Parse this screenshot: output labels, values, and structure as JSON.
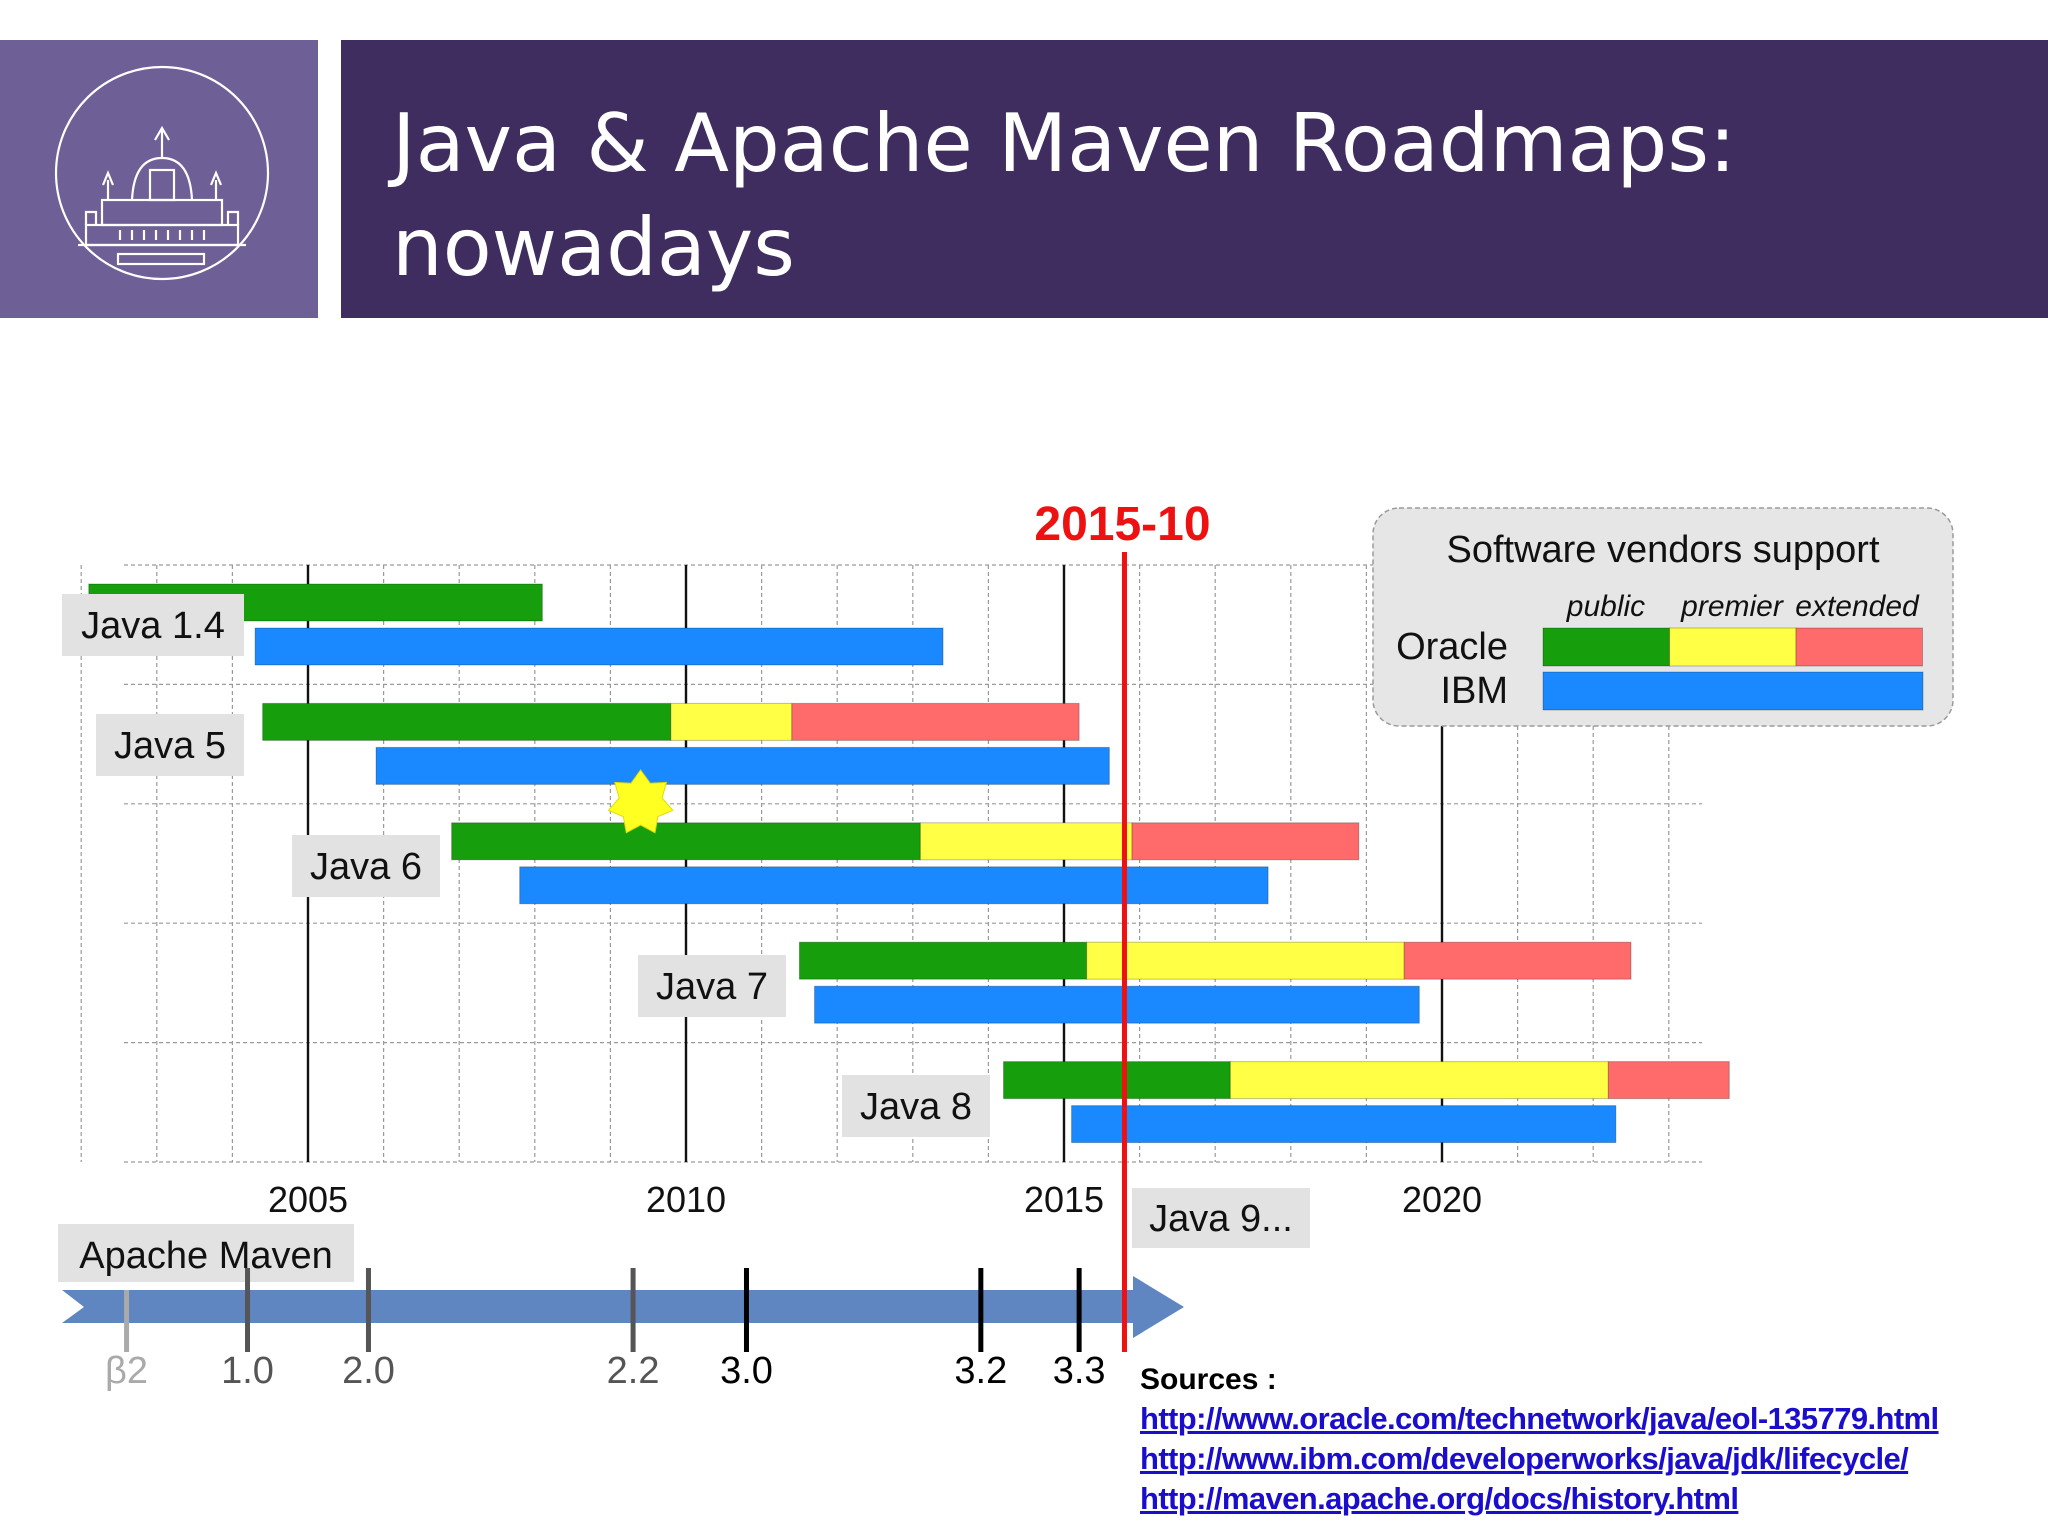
{
  "slide": {
    "title_line1": "Java & Apache Maven Roadmaps:",
    "title_line2": "nowadays"
  },
  "chart_data": {
    "type": "gantt",
    "title": "",
    "x_axis": {
      "ticks": [
        "2005",
        "2010",
        "2015",
        "2020"
      ],
      "range": [
        2002,
        2023.5
      ],
      "grid": true
    },
    "marker": {
      "label": "2015-10",
      "x": 2015.8,
      "color": "#ee1111"
    },
    "highlight_star": {
      "x": 2009.4,
      "row": "Java 5"
    },
    "legend": {
      "title": "Software vendors support",
      "columns": [
        "public",
        "premier",
        "extended"
      ],
      "vendors": [
        "Oracle",
        "IBM"
      ],
      "placement": "top-right",
      "colors": {
        "public": "#169e0d",
        "premier": "#ffff45",
        "extended": "#ff6a6a",
        "ibm": "#1a88ff"
      }
    },
    "releases": [
      {
        "name": "Java 1.4",
        "oracle": [
          {
            "phase": "public",
            "start": 2002.1,
            "end": 2008.1
          }
        ],
        "ibm": [
          {
            "start": 2004.3,
            "end": 2013.4
          }
        ]
      },
      {
        "name": "Java 5",
        "oracle": [
          {
            "phase": "public",
            "start": 2004.4,
            "end": 2009.8
          },
          {
            "phase": "premier",
            "start": 2009.8,
            "end": 2011.4
          },
          {
            "phase": "extended",
            "start": 2011.4,
            "end": 2015.2
          }
        ],
        "ibm": [
          {
            "start": 2005.9,
            "end": 2015.6
          }
        ]
      },
      {
        "name": "Java 6",
        "oracle": [
          {
            "phase": "public",
            "start": 2006.9,
            "end": 2013.1
          },
          {
            "phase": "premier",
            "start": 2013.1,
            "end": 2015.9
          },
          {
            "phase": "extended",
            "start": 2015.9,
            "end": 2018.9
          }
        ],
        "ibm": [
          {
            "start": 2007.8,
            "end": 2017.7
          }
        ]
      },
      {
        "name": "Java 7",
        "oracle": [
          {
            "phase": "public",
            "start": 2011.5,
            "end": 2015.3
          },
          {
            "phase": "premier",
            "start": 2015.3,
            "end": 2019.5
          },
          {
            "phase": "extended",
            "start": 2019.5,
            "end": 2022.5
          }
        ],
        "ibm": [
          {
            "start": 2011.7,
            "end": 2019.7
          }
        ]
      },
      {
        "name": "Java 8",
        "oracle": [
          {
            "phase": "public",
            "start": 2014.2,
            "end": 2017.2
          },
          {
            "phase": "premier",
            "start": 2017.2,
            "end": 2022.2
          },
          {
            "phase": "extended",
            "start": 2022.2,
            "end": 2023.8
          }
        ],
        "ibm": [
          {
            "start": 2015.1,
            "end": 2022.3
          }
        ]
      }
    ],
    "next_release_label": "Java 9...",
    "maven": {
      "label": "Apache Maven",
      "arrow_color": "#5f86c1",
      "versions": [
        {
          "label": "β2",
          "x": 2002.6,
          "muted": true
        },
        {
          "label": "1.0",
          "x": 2004.2,
          "muted": false
        },
        {
          "label": "2.0",
          "x": 2005.8,
          "muted": false
        },
        {
          "label": "2.2",
          "x": 2009.3,
          "muted": false
        },
        {
          "label": "3.0",
          "x": 2010.8,
          "muted": false
        },
        {
          "label": "3.2",
          "x": 2013.9,
          "muted": false
        },
        {
          "label": "3.3",
          "x": 2015.2,
          "muted": false
        }
      ]
    }
  },
  "sources": {
    "label": "Sources :",
    "links": [
      "http://www.oracle.com/technetwork/java/eol-135779.html",
      "http://www.ibm.com/developerworks/java/jdk/lifecycle/",
      "http://maven.apache.org/docs/history.html"
    ]
  }
}
